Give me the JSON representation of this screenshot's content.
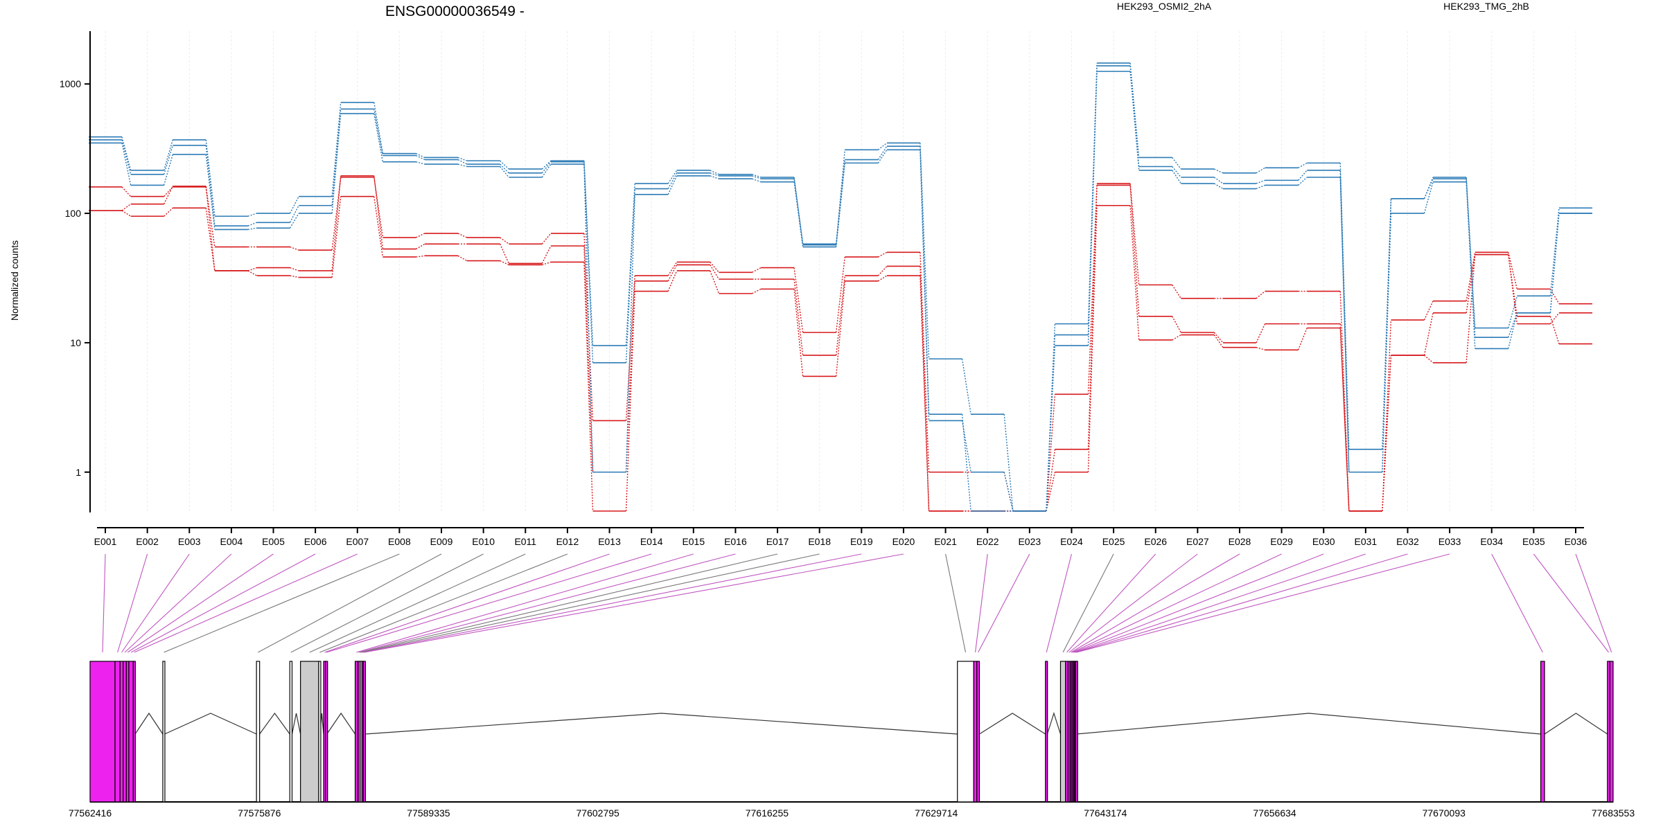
{
  "chart_data": {
    "type": "line",
    "title": "ENSG00000036549 -",
    "ylabel": "Normalized counts",
    "yscale": "log",
    "ylim": [
      0.5,
      2000
    ],
    "yticks": [
      1,
      10,
      100,
      1000
    ],
    "ytick_labels": [
      "1",
      "10",
      "100",
      "1000"
    ],
    "categories": [
      "E001",
      "E002",
      "E003",
      "E004",
      "E005",
      "E006",
      "E007",
      "E008",
      "E009",
      "E010",
      "E011",
      "E012",
      "E013",
      "E014",
      "E015",
      "E016",
      "E017",
      "E018",
      "E019",
      "E020",
      "E021",
      "E022",
      "E023",
      "E024",
      "E025",
      "E026",
      "E027",
      "E028",
      "E029",
      "E030",
      "E031",
      "E032",
      "E033",
      "E034",
      "E035",
      "E036"
    ],
    "legend": [
      {
        "name": "HEK293_OSMI2_2hA",
        "color": "#d7191c"
      },
      {
        "name": "HEK293_TMG_2hB",
        "color": "#2c7bb6"
      }
    ],
    "series": [
      {
        "group": "HEK293_OSMI2_2hA",
        "color": "#d7191c",
        "values": [
          160,
          135,
          160,
          55,
          55,
          52,
          190,
          65,
          70,
          65,
          58,
          70,
          2.5,
          33,
          42,
          35,
          38,
          12,
          46,
          50,
          1.0,
          1.0,
          0.5,
          4.0,
          170,
          28,
          22,
          22,
          25,
          25,
          0.5,
          15,
          21,
          50,
          26,
          20
        ]
      },
      {
        "group": "HEK293_OSMI2_2hA",
        "color": "#d7191c",
        "values": [
          105,
          118,
          162,
          36,
          38,
          36,
          195,
          53,
          58,
          58,
          41,
          56,
          1.0,
          30,
          40,
          31,
          31,
          8.0,
          33,
          39,
          0.5,
          0.5,
          0.5,
          1.5,
          165,
          16,
          12,
          10,
          14,
          14,
          0.5,
          8.0,
          17,
          48,
          14,
          17
        ]
      },
      {
        "group": "HEK293_OSMI2_2hA",
        "color": "#d7191c",
        "values": [
          105,
          95,
          110,
          36,
          33,
          32,
          135,
          46,
          47,
          43,
          40,
          42,
          0.5,
          25,
          36,
          24,
          26,
          5.5,
          30,
          33,
          0.5,
          0.5,
          0.5,
          1.0,
          115,
          10.5,
          11.5,
          9.2,
          8.8,
          13,
          0.5,
          8.0,
          7.0,
          48,
          16,
          9.8
        ]
      },
      {
        "group": "HEK293_TMG_2hB",
        "color": "#2c7bb6",
        "values": [
          390,
          215,
          370,
          95,
          100,
          135,
          720,
          290,
          270,
          255,
          220,
          255,
          9.5,
          170,
          215,
          200,
          190,
          58,
          310,
          350,
          7.5,
          2.8,
          0.5,
          14,
          1450,
          270,
          220,
          205,
          225,
          245,
          1.5,
          130,
          190,
          13,
          23,
          110
        ]
      },
      {
        "group": "HEK293_TMG_2hB",
        "color": "#2c7bb6",
        "values": [
          370,
          200,
          335,
          80,
          85,
          115,
          640,
          280,
          260,
          240,
          205,
          250,
          7.0,
          155,
          205,
          195,
          185,
          57,
          260,
          330,
          2.8,
          0.5,
          0.5,
          11.5,
          1380,
          230,
          190,
          170,
          180,
          215,
          1.0,
          130,
          185,
          11,
          17,
          100
        ]
      },
      {
        "group": "HEK293_TMG_2hB",
        "color": "#2c7bb6",
        "values": [
          350,
          165,
          285,
          75,
          77,
          100,
          590,
          250,
          240,
          230,
          190,
          240,
          1.0,
          140,
          195,
          185,
          175,
          55,
          245,
          310,
          2.5,
          1.0,
          0.5,
          9.5,
          1250,
          215,
          170,
          155,
          165,
          190,
          1.0,
          100,
          175,
          9.0,
          17,
          100
        ]
      }
    ],
    "gene_model": {
      "coordinate_labels": [
        "77562416",
        "77575876",
        "77589335",
        "77602795",
        "77616255",
        "77629714",
        "77643174",
        "77656634",
        "77670093",
        "77683553"
      ],
      "coordinate_values": [
        77562416,
        77575876,
        77589335,
        77602795,
        77616255,
        77629714,
        77643174,
        77656634,
        77670093,
        77683553
      ],
      "range": [
        77562416,
        77683553
      ],
      "exon_colors": {
        "significant": "#ee22ee",
        "constitutive": "#ffffff",
        "other": "#cccccc",
        "edge": "#000000"
      },
      "connector_colors": {
        "significant": "#c055c0",
        "other": "#777777"
      },
      "exons": [
        {
          "id": "E001",
          "start": 77562416,
          "end": 77564400,
          "sig": true
        },
        {
          "id": "E002",
          "start": 77564400,
          "end": 77564800,
          "sig": true
        },
        {
          "id": "E003",
          "start": 77564800,
          "end": 77565050,
          "sig": true
        },
        {
          "id": "E004",
          "start": 77565050,
          "end": 77565300,
          "sig": true
        },
        {
          "id": "E005",
          "start": 77565300,
          "end": 77565500,
          "sig": true
        },
        {
          "id": "E006",
          "start": 77565500,
          "end": 77565850,
          "sig": true
        },
        {
          "id": "E007",
          "start": 77565850,
          "end": 77566000,
          "sig": true
        },
        {
          "id": "E008",
          "start": 77568200,
          "end": 77568350,
          "sig": false
        },
        {
          "id": "E009",
          "start": 77575650,
          "end": 77575900,
          "sig": false
        },
        {
          "id": "E010",
          "start": 77578300,
          "end": 77578480,
          "sig": false
        },
        {
          "id": "E011",
          "start": 77579150,
          "end": 77580600,
          "sig": false
        },
        {
          "id": "E012",
          "start": 77580600,
          "end": 77580700,
          "sig": false
        },
        {
          "id": "E013",
          "start": 77580990,
          "end": 77581140,
          "sig": true
        },
        {
          "id": "E014",
          "start": 77581140,
          "end": 77581250,
          "sig": true
        },
        {
          "id": "E015",
          "start": 77583500,
          "end": 77583700,
          "sig": true
        },
        {
          "id": "E016",
          "start": 77583700,
          "end": 77583820,
          "sig": true
        },
        {
          "id": "E017",
          "start": 77583820,
          "end": 77583940,
          "sig": false
        },
        {
          "id": "E018",
          "start": 77583940,
          "end": 77584050,
          "sig": false
        },
        {
          "id": "E019",
          "start": 77584050,
          "end": 77584150,
          "sig": true
        },
        {
          "id": "E020",
          "start": 77584150,
          "end": 77584300,
          "sig": true
        },
        {
          "id": "E021",
          "start": 77631400,
          "end": 77632700,
          "sig": false
        },
        {
          "id": "E022",
          "start": 77632700,
          "end": 77632950,
          "sig": true
        },
        {
          "id": "E023",
          "start": 77632950,
          "end": 77633150,
          "sig": true
        },
        {
          "id": "E024",
          "start": 77638400,
          "end": 77638550,
          "sig": true
        },
        {
          "id": "E025",
          "start": 77639600,
          "end": 77640000,
          "sig": false
        },
        {
          "id": "E026",
          "start": 77640000,
          "end": 77640200,
          "sig": true
        },
        {
          "id": "E027",
          "start": 77640200,
          "end": 77640350,
          "sig": true
        },
        {
          "id": "E028",
          "start": 77640350,
          "end": 77640450,
          "sig": true
        },
        {
          "id": "E029",
          "start": 77640450,
          "end": 77640550,
          "sig": true
        },
        {
          "id": "E030",
          "start": 77640550,
          "end": 77640650,
          "sig": true
        },
        {
          "id": "E031",
          "start": 77640650,
          "end": 77640720,
          "sig": true
        },
        {
          "id": "E032",
          "start": 77640720,
          "end": 77640800,
          "sig": true
        },
        {
          "id": "E033",
          "start": 77640800,
          "end": 77640880,
          "sig": true
        },
        {
          "id": "E034",
          "start": 77677800,
          "end": 77678100,
          "sig": true
        },
        {
          "id": "E035",
          "start": 77683100,
          "end": 77683300,
          "sig": true
        },
        {
          "id": "E036",
          "start": 77683300,
          "end": 77683553,
          "sig": true
        }
      ],
      "introns": [
        [
          77566000,
          77568200
        ],
        [
          77568350,
          77575650
        ],
        [
          77575900,
          77578300
        ],
        [
          77578480,
          77579150
        ],
        [
          77580700,
          77580990
        ],
        [
          77581250,
          77583500
        ],
        [
          77584300,
          77631400
        ],
        [
          77633150,
          77638400
        ],
        [
          77638550,
          77639600
        ],
        [
          77640880,
          77677800
        ],
        [
          77678100,
          77683100
        ]
      ]
    }
  }
}
